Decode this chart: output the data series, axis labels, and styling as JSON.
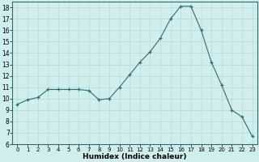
{
  "x": [
    0,
    1,
    2,
    3,
    4,
    5,
    6,
    7,
    8,
    9,
    10,
    11,
    12,
    13,
    14,
    15,
    16,
    17,
    18,
    19,
    20,
    21,
    22,
    23
  ],
  "y": [
    9.5,
    9.9,
    10.1,
    10.8,
    10.8,
    10.8,
    10.8,
    10.7,
    9.9,
    10.0,
    11.0,
    12.1,
    13.2,
    14.1,
    15.3,
    17.0,
    18.1,
    18.1,
    16.0,
    13.2,
    11.2,
    9.0,
    8.4,
    6.7
  ],
  "xlabel": "Humidex (Indice chaleur)",
  "line_color": "#2e6e6e",
  "bg_color": "#d0eeee",
  "grid_color": "#b8d8d8",
  "xlim": [
    -0.5,
    23.5
  ],
  "ylim": [
    6,
    18.5
  ],
  "yticks": [
    6,
    7,
    8,
    9,
    10,
    11,
    12,
    13,
    14,
    15,
    16,
    17,
    18
  ],
  "xticks": [
    0,
    1,
    2,
    3,
    4,
    5,
    6,
    7,
    8,
    9,
    10,
    11,
    12,
    13,
    14,
    15,
    16,
    17,
    18,
    19,
    20,
    21,
    22,
    23
  ]
}
